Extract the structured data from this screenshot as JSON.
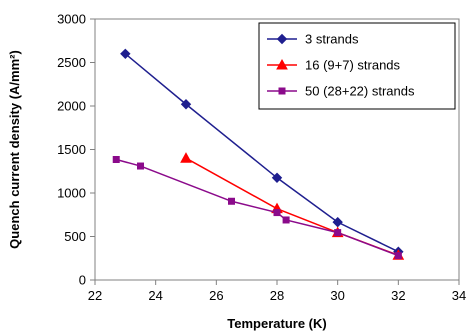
{
  "chart_data": {
    "type": "line",
    "title": "",
    "xlabel": "Temperature (K)",
    "ylabel": "Quench current density (A/mm²)",
    "xlim": [
      22,
      34
    ],
    "ylim": [
      0,
      3000
    ],
    "xticks": [
      22,
      24,
      26,
      28,
      30,
      32,
      34
    ],
    "yticks": [
      0,
      500,
      1000,
      1500,
      2000,
      2500,
      3000
    ],
    "grid": "none",
    "legend_position": "top-right",
    "series": [
      {
        "name": "3 strands",
        "color": "#1f1f8f",
        "marker": "diamond",
        "points": [
          [
            23,
            2600
          ],
          [
            25,
            2020
          ],
          [
            28,
            1175
          ],
          [
            30,
            665
          ],
          [
            32,
            325
          ]
        ]
      },
      {
        "name": "16 (9+7) strands",
        "color": "#ff0000",
        "marker": "triangle",
        "points": [
          [
            25,
            1400
          ],
          [
            28,
            820
          ],
          [
            30,
            545
          ],
          [
            32,
            285
          ]
        ]
      },
      {
        "name": "50 (28+22) strands",
        "color": "#8b0a8b",
        "marker": "square",
        "points": [
          [
            22.7,
            1385
          ],
          [
            23.5,
            1310
          ],
          [
            26.5,
            905
          ],
          [
            28,
            775
          ],
          [
            28.3,
            690
          ],
          [
            30,
            545
          ],
          [
            32,
            280
          ]
        ]
      }
    ]
  }
}
